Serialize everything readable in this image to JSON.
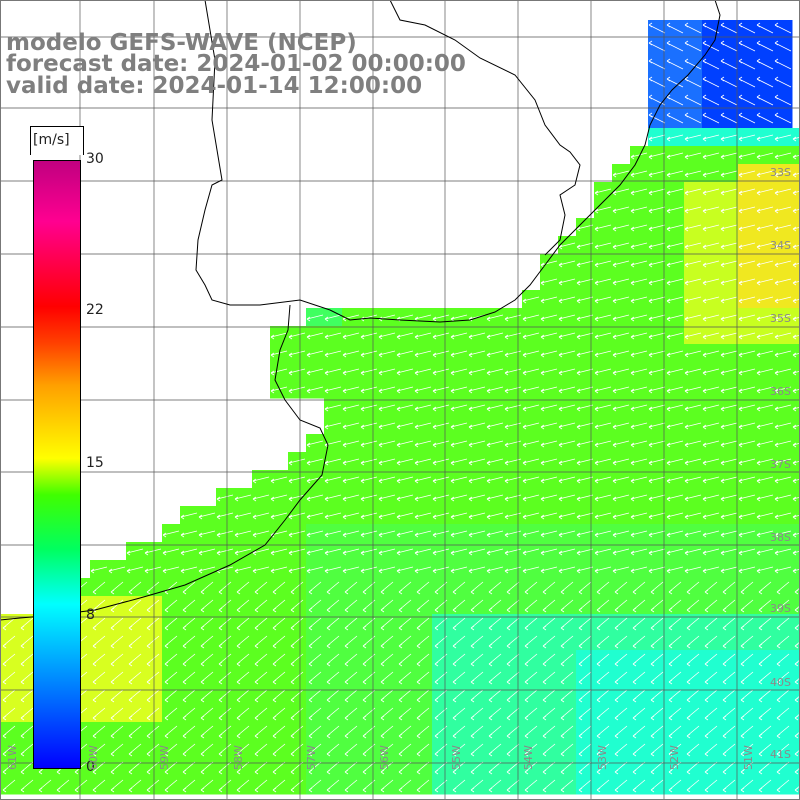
{
  "header": {
    "line1": "modelo GEFS-WAVE (NCEP)",
    "line2": "forecast date: 2024-01-02 00:00:00",
    "line3": "valid date: 2024-01-14 12:00:00"
  },
  "colorbar": {
    "unit": "[m/s]",
    "ticks": [
      "30",
      "22",
      "15",
      "8",
      "0"
    ],
    "colors": [
      "#0000ff",
      "#00a0ff",
      "#00ffff",
      "#00ff60",
      "#40ff00",
      "#ffff00",
      "#ffa000",
      "#ff0000",
      "#ff0090",
      "#c00080"
    ]
  },
  "lat_labels": [
    "33S",
    "34S",
    "35S",
    "36S",
    "37S",
    "38S",
    "39S",
    "40S",
    "41S"
  ],
  "lon_labels": [
    "61W",
    "60W",
    "59W",
    "58W",
    "57W",
    "56W",
    "55W",
    "54W",
    "53W",
    "52W",
    "51W"
  ],
  "colors": {
    "land": "#ffffff",
    "coast": "#000000",
    "grid": "#555555",
    "arrow": "#ffffff",
    "title": "#7f7f7f"
  }
}
